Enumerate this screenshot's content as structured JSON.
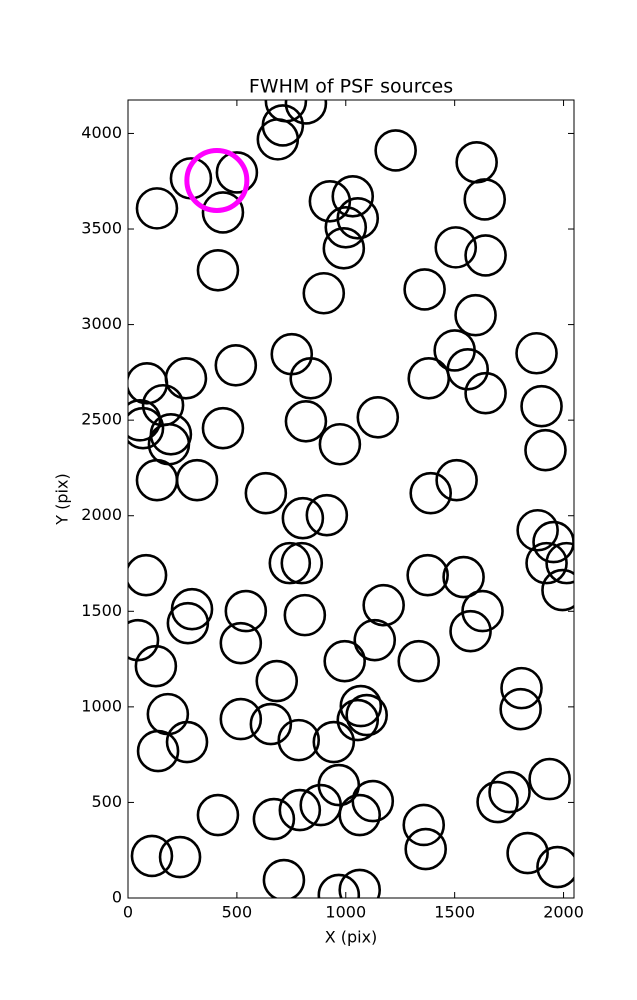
{
  "chart_data": {
    "type": "scatter",
    "title": "FWHM of PSF sources",
    "xlabel": "X (pix)",
    "ylabel": "Y (pix)",
    "x": [
      725,
      817,
      711,
      688,
      1229,
      1601,
      289,
      500,
      133,
      436,
      927,
      1032,
      1055,
      1000,
      1638,
      1505,
      1642,
      991,
      413,
      899,
      1362,
      1596,
      752,
      87,
      266,
      495,
      839,
      1381,
      1500,
      1560,
      1876,
      161,
      55,
      69,
      197,
      188,
      436,
      817,
      1147,
      973,
      1642,
      1899,
      1917,
      133,
      317,
      633,
      1509,
      1390,
      803,
      913,
      1881,
      1954,
      1922,
      2014,
      1995,
      83,
      743,
      798,
      1376,
      1541,
      294,
      275,
      541,
      812,
      1174,
      1628,
      1573,
      46,
      128,
      518,
      1133,
      995,
      1335,
      683,
      1807,
      1803,
      1069,
      1096,
      1055,
      183,
      518,
      656,
      784,
      945,
      271,
      138,
      968,
      1124,
      885,
      789,
      1064,
      670,
      413,
      1358,
      1367,
      1752,
      1697,
      1936,
      1835,
      1972,
      110,
      239,
      716,
      968,
      1064
    ],
    "values": [
      4168,
      4157,
      4042,
      3969,
      3911,
      3849,
      3765,
      3796,
      3608,
      3587,
      3645,
      3671,
      3556,
      3509,
      3655,
      3404,
      3362,
      3399,
      3284,
      3164,
      3184,
      3049,
      2845,
      2693,
      2719,
      2787,
      2719,
      2719,
      2865,
      2766,
      2850,
      2578,
      2499,
      2458,
      2426,
      2374,
      2458,
      2494,
      2515,
      2374,
      2641,
      2573,
      2343,
      2186,
      2186,
      2118,
      2186,
      2118,
      1987,
      2003,
      1924,
      1862,
      1752,
      1752,
      1611,
      1689,
      1752,
      1752,
      1689,
      1679,
      1511,
      1438,
      1501,
      1480,
      1532,
      1501,
      1396,
      1349,
      1213,
      1333,
      1349,
      1239,
      1239,
      1135,
      1098,
      988,
      1004,
      957,
      931,
      962,
      936,
      910,
      826,
      816,
      816,
      769,
      591,
      507,
      486,
      460,
      434,
      413,
      434,
      382,
      256,
      554,
      502,
      622,
      235,
      162,
      220,
      214,
      94,
      16,
      42
    ],
    "color": "#000000",
    "highlight": {
      "x": 408,
      "y": 3754,
      "color": "#ff00ff"
    },
    "xlim": [
      0,
      2048
    ],
    "ylim": [
      0,
      4175
    ],
    "xticks": [
      0,
      500,
      1000,
      1500,
      2000
    ],
    "yticks": [
      0,
      500,
      1000,
      1500,
      2000,
      2500,
      3000,
      3500,
      4000
    ]
  }
}
